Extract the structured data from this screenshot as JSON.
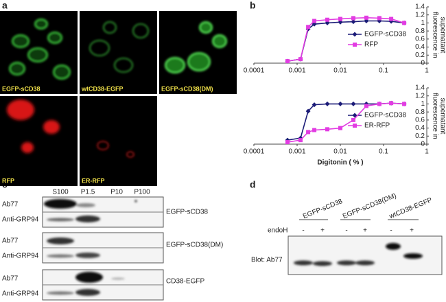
{
  "panel_labels": [
    "a",
    "b",
    "c",
    "d"
  ],
  "panel_a": {
    "images": [
      "EGFP-sCD38",
      "wtCD38-EGFP",
      "EGFP-sCD38(DM)",
      "RFP",
      "ER-RFP"
    ]
  },
  "chart_data": [
    {
      "type": "line",
      "log_x": true,
      "x": [
        0.0006,
        0.0012,
        0.0018,
        0.0025,
        0.005,
        0.01,
        0.02,
        0.04,
        0.08,
        0.15,
        0.3
      ],
      "series": [
        {
          "name": "EGFP-sCD38",
          "color": "#1c1c78",
          "marker": "diamond",
          "values": [
            0.05,
            0.1,
            0.85,
            0.97,
            1.0,
            1.02,
            1.03,
            1.05,
            1.05,
            1.04,
            1.0
          ]
        },
        {
          "name": "RFP",
          "color": "#e23ce2",
          "marker": "square",
          "values": [
            0.05,
            0.1,
            0.9,
            1.05,
            1.08,
            1.1,
            1.12,
            1.13,
            1.12,
            1.1,
            1.0
          ]
        }
      ],
      "xlim": [
        0.0001,
        1
      ],
      "xticks": [
        0.0001,
        0.001,
        0.01,
        0.1,
        1
      ],
      "ylim": [
        0,
        1.4
      ],
      "yticks": [
        0,
        0.2,
        0.4,
        0.6,
        0.8,
        1,
        1.2,
        1.4
      ],
      "y_label_lines": [
        "fluorescence in",
        "supernatant"
      ]
    },
    {
      "type": "line",
      "log_x": true,
      "x": [
        0.0006,
        0.0012,
        0.0018,
        0.0025,
        0.005,
        0.01,
        0.02,
        0.04,
        0.08,
        0.15,
        0.3
      ],
      "series": [
        {
          "name": "EGFP-sCD38",
          "color": "#1c1c78",
          "marker": "diamond",
          "values": [
            0.1,
            0.15,
            0.82,
            0.98,
            1.0,
            1.0,
            1.0,
            1.0,
            1.0,
            1.02,
            1.0
          ]
        },
        {
          "name": "ER-RFP",
          "color": "#e23ce2",
          "marker": "square",
          "values": [
            0.05,
            0.1,
            0.3,
            0.35,
            0.37,
            0.4,
            0.6,
            0.95,
            1.0,
            1.02,
            1.0
          ]
        }
      ],
      "xlim": [
        0.0001,
        1
      ],
      "xticks": [
        0.0001,
        0.001,
        0.01,
        0.1,
        1
      ],
      "ylim": [
        0,
        1.4
      ],
      "yticks": [
        0,
        0.2,
        0.4,
        0.6,
        0.8,
        1,
        1.2,
        1.4
      ],
      "x_label": "Digitonin ( % )",
      "y_label_lines": [
        "fluorescence in",
        "supernatant"
      ]
    }
  ],
  "panel_c": {
    "fractions": [
      "S100",
      "P1.5",
      "P10",
      "P100"
    ],
    "blots": [
      {
        "rows": [
          "Ab77",
          "Anti-GRP94"
        ],
        "construct": "EGFP-sCD38"
      },
      {
        "rows": [
          "Ab77",
          "Anti-GRP94"
        ],
        "construct": "EGFP-sCD38(DM)"
      },
      {
        "rows": [
          "Ab77",
          "Anti-GRP94"
        ],
        "construct": "CD38-EGFP"
      }
    ]
  },
  "panel_d": {
    "groups": [
      "EGFP-sCD38",
      "EGFP-sCD38(DM)",
      "wtCD38-EGFP"
    ],
    "treatment": "endoH",
    "signs": [
      "-",
      "+",
      "-",
      "+",
      "-",
      "+"
    ],
    "blot_label": "Blot: Ab77"
  }
}
